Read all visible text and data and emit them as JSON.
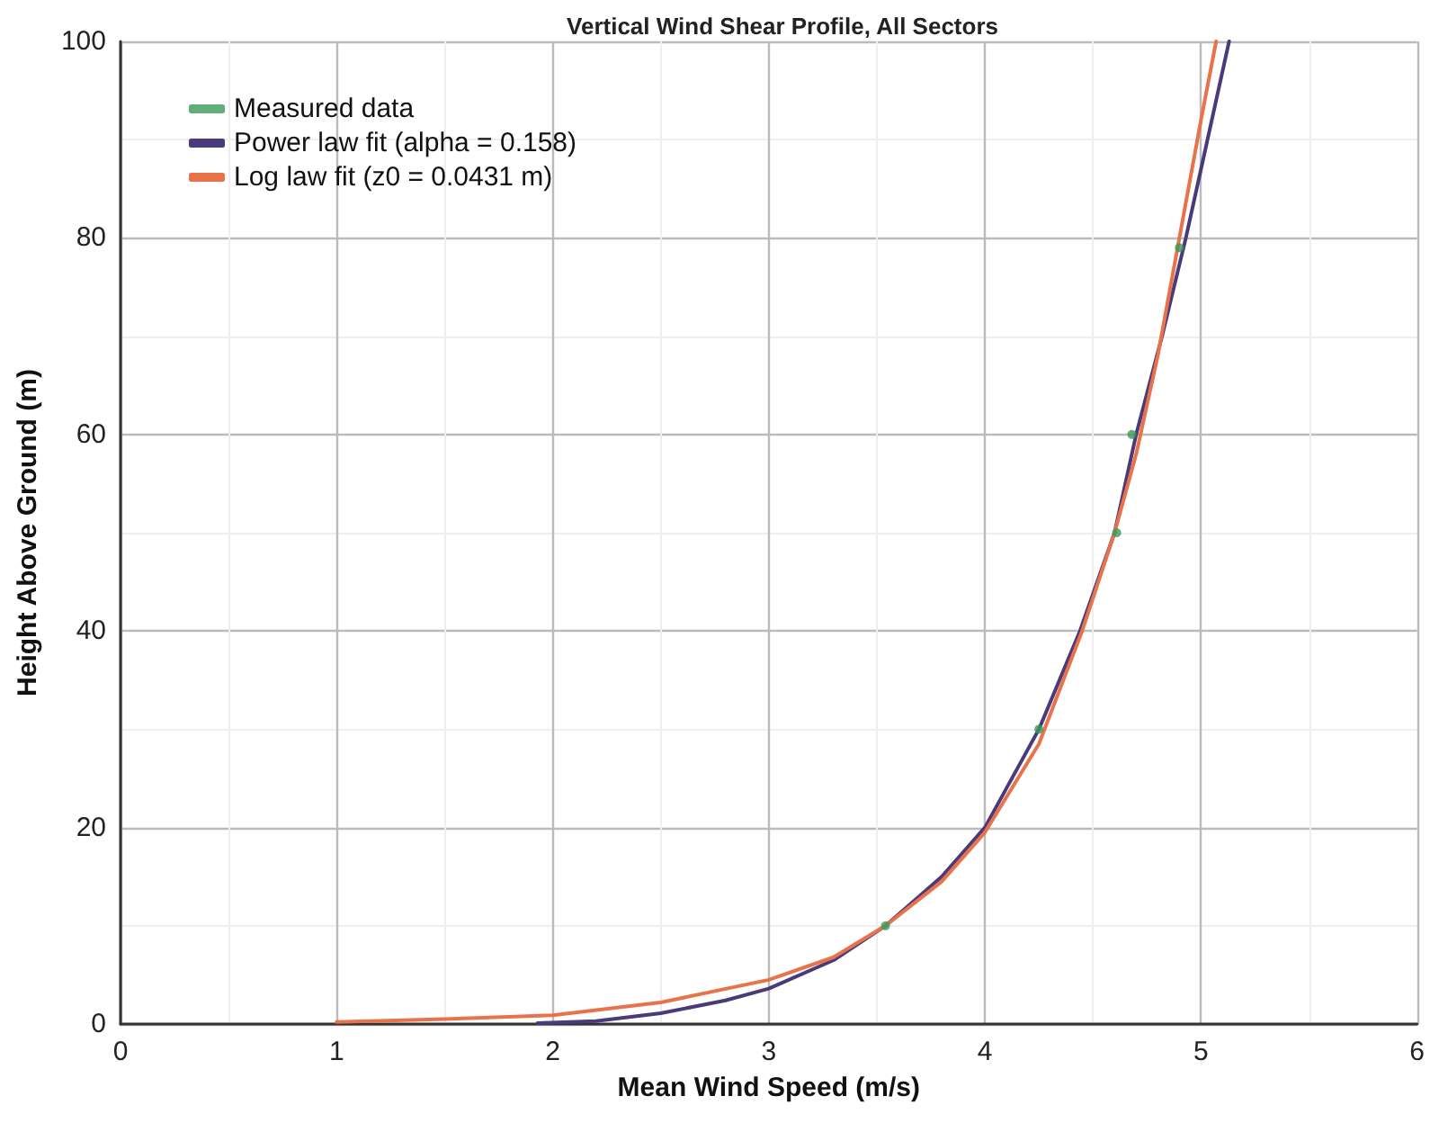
{
  "chart_data": {
    "type": "line",
    "title": "Vertical Wind Shear Profile, All Sectors",
    "xlabel": "Mean Wind Speed (m/s)",
    "ylabel": "Height Above Ground (m)",
    "xlim": [
      0,
      6
    ],
    "xticks": [
      0,
      1,
      2,
      3,
      4,
      5,
      6
    ],
    "ylim": [
      0,
      100
    ],
    "yticks": [
      0,
      20,
      40,
      60,
      80,
      100
    ],
    "grid": true,
    "legend": "top left",
    "series": [
      {
        "name": "Measured data",
        "type": "scatter",
        "marker": "circle",
        "color": "#3a9a5a",
        "x": [
          3.54,
          4.25,
          4.61,
          4.68,
          4.9
        ],
        "values": [
          10,
          30,
          50,
          60,
          79
        ]
      },
      {
        "name": "Power law fit (alpha = 0.158)",
        "marker": "none",
        "color": "#4b3a7a",
        "x": [
          1.93,
          2.2,
          2.5,
          2.8,
          3,
          3.3,
          3.54,
          3.8,
          4,
          4.25,
          4.44,
          4.6,
          4.7,
          4.82,
          4.93,
          5.03,
          5.13
        ],
        "values": [
          0.1,
          0.3,
          1.1,
          2.4,
          3.6,
          6.5,
          10,
          15,
          20,
          30,
          40,
          50,
          60,
          70,
          80,
          90,
          100
        ]
      },
      {
        "name": "Log law fit (z0 = 0.0431 m)",
        "marker": "none",
        "color": "#e8734a",
        "x": [
          1,
          1.5,
          2,
          2.5,
          3,
          3.3,
          3.54,
          3.8,
          4,
          4.25,
          4.45,
          4.6,
          4.7,
          4.8,
          4.9,
          5,
          5.07
        ],
        "values": [
          0.2,
          0.5,
          0.9,
          2.2,
          4.5,
          6.8,
          10,
          14.5,
          19.5,
          28.5,
          40,
          50,
          58,
          68,
          80,
          92,
          100
        ]
      }
    ]
  }
}
